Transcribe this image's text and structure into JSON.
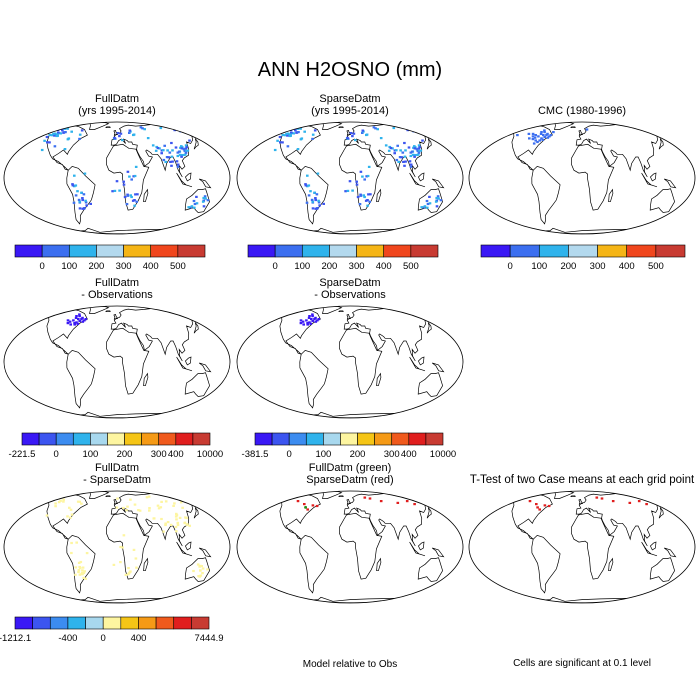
{
  "title": "ANN H2OSNO (mm)",
  "panels": [
    {
      "id": "full",
      "title_lines": [
        "FullDatm",
        "(yrs 1995-2014)"
      ],
      "dots": "scatter_blue",
      "overlay": "arctic_red"
    },
    {
      "id": "sparse",
      "title_lines": [
        "SparseDatm",
        "(yrs 1995-2014)"
      ],
      "dots": "scatter_blue",
      "overlay": "arctic_red"
    },
    {
      "id": "obs",
      "title_lines": [
        "CMC (1980-1996)"
      ],
      "dots": "sparse_blue",
      "overlay": "none"
    },
    {
      "id": "full_minus_obs",
      "title_lines": [
        "FullDatm",
        "- Observations"
      ],
      "dots": "ne_na_blue",
      "overlay": "none"
    },
    {
      "id": "sparse_minus_obs",
      "title_lines": [
        "SparseDatm",
        "- Observations"
      ],
      "dots": "ne_na_blue",
      "overlay": "none"
    },
    {
      "id": "full_minus_sparse",
      "title_lines": [
        "FullDatm",
        "- SparseDatm"
      ],
      "dots": "scatter_yellow",
      "overlay": "none"
    },
    {
      "id": "model_vs_obs",
      "title_lines": [
        "FullDatm (green)",
        "SparseDatm (red)"
      ],
      "dots": "few_red",
      "overlay": "none"
    },
    {
      "id": "ttest",
      "title_lines": [
        "T-Test of two Case means at each grid point"
      ],
      "dots": "few_red",
      "overlay": "none"
    }
  ],
  "colorbars": [
    {
      "id": "cb_full",
      "colors": [
        "#3a18f5",
        "#3c6ff0",
        "#2fb3ec",
        "#b3d9ee",
        "#f5b516",
        "#f0461d",
        "#c83b32"
      ],
      "labels": [
        "0",
        "100",
        "200",
        "300",
        "400",
        "500"
      ]
    },
    {
      "id": "cb_sparse",
      "colors": [
        "#3a18f5",
        "#3c6ff0",
        "#2fb3ec",
        "#b3d9ee",
        "#f5b516",
        "#f0461d",
        "#c83b32"
      ],
      "labels": [
        "0",
        "100",
        "200",
        "300",
        "400",
        "500"
      ]
    },
    {
      "id": "cb_obs",
      "colors": [
        "#3a18f5",
        "#3c6ff0",
        "#2fb3ec",
        "#b3d9ee",
        "#f5b516",
        "#f0461d",
        "#c83b32"
      ],
      "labels": [
        "0",
        "100",
        "200",
        "300",
        "400",
        "500"
      ]
    },
    {
      "id": "cb_diff1",
      "colors": [
        "#3a18f5",
        "#3c55f0",
        "#3c8cf0",
        "#2fb3ec",
        "#a8d8ee",
        "#fdf5a0",
        "#f5c516",
        "#f59a16",
        "#f05a1d",
        "#e01e1e",
        "#c83b32"
      ],
      "labels": [
        "-221.5",
        "0",
        "100",
        "200",
        "300",
        "400",
        "10000"
      ]
    },
    {
      "id": "cb_diff2",
      "colors": [
        "#3a18f5",
        "#3c55f0",
        "#3c8cf0",
        "#2fb3ec",
        "#a8d8ee",
        "#fdf5a0",
        "#f5c516",
        "#f59a16",
        "#f05a1d",
        "#e01e1e",
        "#c83b32"
      ],
      "labels": [
        "-381.5",
        "0",
        "100",
        "200",
        "300",
        "400",
        "10000"
      ]
    },
    {
      "id": "cb_diff3",
      "colors": [
        "#3a18f5",
        "#3c55f0",
        "#3c8cf0",
        "#2fb3ec",
        "#a8d8ee",
        "#fdf5a0",
        "#f5c516",
        "#f59a16",
        "#f05a1d",
        "#e01e1e",
        "#c83b32"
      ],
      "labels": [
        "-1212.1",
        "-400",
        "0",
        "400",
        "7444.9"
      ]
    }
  ],
  "notes": {
    "model_vs_obs": "Model relative to Obs",
    "ttest": "Cells are significant at 0.1 level"
  },
  "chart_data": [
    {
      "type": "heatmap",
      "title": "FullDatm (yrs 1995-2014)",
      "colorbar_labels": [
        "0",
        "100",
        "200",
        "300",
        "400",
        "500"
      ]
    },
    {
      "type": "heatmap",
      "title": "SparseDatm (yrs 1995-2014)",
      "colorbar_labels": [
        "0",
        "100",
        "200",
        "300",
        "400",
        "500"
      ]
    },
    {
      "type": "heatmap",
      "title": "CMC (1980-1996)",
      "colorbar_labels": [
        "0",
        "100",
        "200",
        "300",
        "400",
        "500"
      ]
    },
    {
      "type": "heatmap",
      "title": "FullDatm - Observations",
      "colorbar_labels": [
        "-221.5",
        "0",
        "100",
        "200",
        "300",
        "400",
        "10000"
      ]
    },
    {
      "type": "heatmap",
      "title": "SparseDatm - Observations",
      "colorbar_labels": [
        "-381.5",
        "0",
        "100",
        "200",
        "300",
        "400",
        "10000"
      ]
    },
    {
      "type": "heatmap",
      "title": "FullDatm - SparseDatm",
      "colorbar_labels": [
        "-1212.1",
        "-400",
        "0",
        "400",
        "7444.9"
      ]
    },
    {
      "type": "heatmap",
      "title": "FullDatm (green) SparseDatm (red)",
      "note": "Model relative to Obs"
    },
    {
      "type": "heatmap",
      "title": "T-Test of two Case means at each grid point",
      "note": "Cells are significant at 0.1 level"
    }
  ]
}
